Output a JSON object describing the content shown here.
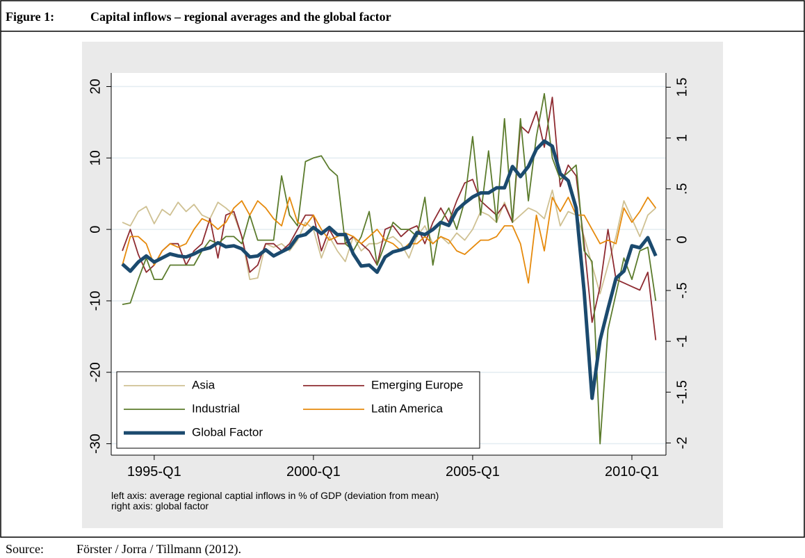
{
  "figure": {
    "label": "Figure 1:",
    "title": "Capital inflows – regional averages and the global factor"
  },
  "chart_data": {
    "type": "line",
    "x": [
      1994,
      1994.25,
      1994.5,
      1994.75,
      1995,
      1995.25,
      1995.5,
      1995.75,
      1996,
      1996.25,
      1996.5,
      1996.75,
      1997,
      1997.25,
      1997.5,
      1997.75,
      1998,
      1998.25,
      1998.5,
      1998.75,
      1999,
      1999.25,
      1999.5,
      1999.75,
      2000,
      2000.25,
      2000.5,
      2000.75,
      2001,
      2001.25,
      2001.5,
      2001.75,
      2002,
      2002.25,
      2002.5,
      2002.75,
      2003,
      2003.25,
      2003.5,
      2003.75,
      2004,
      2004.25,
      2004.5,
      2004.75,
      2005,
      2005.25,
      2005.5,
      2005.75,
      2006,
      2006.25,
      2006.5,
      2006.75,
      2007,
      2007.25,
      2007.5,
      2007.75,
      2008,
      2008.25,
      2008.5,
      2008.75,
      2009,
      2009.25,
      2009.5,
      2009.75,
      2010,
      2010.25,
      2010.5,
      2010.75
    ],
    "xlim": [
      1993.65,
      2011.07
    ],
    "xticks": [
      {
        "value": 1995,
        "label": "1995-Q1"
      },
      {
        "value": 2000,
        "label": "2000-Q1"
      },
      {
        "value": 2005,
        "label": "2005-Q1"
      },
      {
        "value": 2010,
        "label": "2010-Q1"
      }
    ],
    "ylim": [
      -31.6,
      21.9
    ],
    "yticks": [
      -30,
      -20,
      -10,
      0,
      10,
      20
    ],
    "y2lim": [
      -2.12,
      1.64
    ],
    "y2ticks": [
      {
        "value": -2,
        "label": "-2"
      },
      {
        "value": -1.5,
        "label": "-1.5"
      },
      {
        "value": -1,
        "label": "-1"
      },
      {
        "value": -0.5,
        "label": "-.5"
      },
      0,
      {
        "value": 0.5,
        "label": ".5"
      },
      1,
      {
        "value": 1.5,
        "label": "1.5"
      }
    ],
    "grid": true,
    "legend": "lower left",
    "series": [
      {
        "name": "Asia",
        "color": "#cfc193",
        "values": [
          1,
          0.5,
          2.5,
          3.2,
          0.8,
          2.8,
          2,
          3.8,
          2.5,
          3.5,
          2,
          1.5,
          3.8,
          3,
          2,
          -1,
          -7,
          -6.8,
          -2,
          -2.5,
          -2,
          -3,
          -1.5,
          1,
          0,
          -4,
          -1,
          -3,
          -4.5,
          -1,
          -3,
          -2,
          -2,
          -1.5,
          -1,
          -2,
          -4,
          -1,
          0.5,
          -2,
          -1,
          -2,
          -0.5,
          -1.5,
          0,
          2.5,
          2,
          1,
          3.8,
          1,
          2,
          3,
          2.5,
          1.5,
          5.5,
          0.5,
          2.5,
          2,
          -1,
          -5,
          -9,
          -5,
          -1,
          4,
          1.5,
          -1,
          2,
          3
        ]
      },
      {
        "name": "Emerging Europe",
        "color": "#8e2b31",
        "values": [
          -3,
          0,
          -3.5,
          -6,
          -5,
          -3,
          -2,
          -2,
          -5,
          -3,
          -2,
          1.5,
          -4,
          2,
          2.5,
          -1,
          -6,
          -5,
          -2,
          -2,
          -3,
          -2,
          0,
          2,
          2,
          -3,
          0,
          -2,
          -2,
          -1,
          -2,
          -3,
          -5,
          0,
          0.5,
          -1,
          0,
          0.5,
          -2,
          1,
          3,
          1,
          4,
          6.5,
          7,
          4,
          3,
          2,
          3.5,
          1,
          14.5,
          13.5,
          16.5,
          11.5,
          18.5,
          6,
          9,
          7.5,
          -2,
          -13,
          -8,
          0,
          -7,
          -7.5,
          -8,
          -8.5,
          -6,
          -15.5
        ]
      },
      {
        "name": "Industrial",
        "color": "#5b7b2c",
        "values": [
          -10.5,
          -10.3,
          -7,
          -4,
          -7,
          -7,
          -5,
          -5,
          -5,
          -5,
          -3,
          -1.5,
          -2,
          -1,
          -1,
          -2,
          2,
          -1.5,
          -1.5,
          -1.5,
          7.5,
          2,
          0.5,
          9.5,
          10,
          10.3,
          8.5,
          7.5,
          -2,
          -3,
          -1,
          2.5,
          -5,
          -2,
          1,
          0,
          0,
          -1,
          4.5,
          -5,
          1,
          3,
          0,
          4,
          13,
          2,
          11,
          1,
          15.5,
          1,
          15.5,
          4,
          13,
          19,
          10,
          7,
          8,
          9,
          -3,
          -4.5,
          -30,
          -14,
          -9,
          -4,
          -7,
          -3,
          -2.5,
          -10
        ]
      },
      {
        "name": "Latin America",
        "color": "#e68a0c",
        "values": [
          -5,
          -1,
          -1,
          -2,
          -5,
          -3,
          -2,
          -2.5,
          -2,
          0,
          1.5,
          1,
          0,
          1,
          3,
          4,
          2,
          4,
          3,
          1.5,
          0.5,
          4.5,
          1,
          0.5,
          2,
          0,
          -1.5,
          -1,
          -0.5,
          -1,
          -2,
          -1,
          0,
          -1.5,
          -2,
          -3,
          -2,
          -2,
          -1,
          -2,
          -1,
          -1.5,
          -3,
          -3.5,
          -2.5,
          -1.5,
          -1.5,
          -1,
          0.5,
          0.5,
          -2,
          -7.5,
          2,
          -3,
          4.5,
          2.5,
          4.5,
          2,
          2,
          0,
          -2,
          -1.5,
          -2,
          3,
          1,
          2.5,
          4.5,
          3
        ]
      },
      {
        "name": "Global Factor",
        "color": "#1b4a6e",
        "axis": "y2",
        "values": [
          -0.24,
          -0.31,
          -0.22,
          -0.16,
          -0.22,
          -0.18,
          -0.14,
          -0.16,
          -0.17,
          -0.14,
          -0.1,
          -0.08,
          -0.03,
          -0.07,
          -0.06,
          -0.09,
          -0.17,
          -0.16,
          -0.1,
          -0.16,
          -0.12,
          -0.08,
          0.03,
          0.05,
          0.12,
          0.06,
          0.12,
          0.05,
          0.05,
          -0.14,
          -0.26,
          -0.25,
          -0.32,
          -0.17,
          -0.12,
          -0.1,
          -0.07,
          0.07,
          0.05,
          0.1,
          0.17,
          0.14,
          0.29,
          0.36,
          0.42,
          0.46,
          0.46,
          0.51,
          0.51,
          0.72,
          0.62,
          0.72,
          0.89,
          0.97,
          0.92,
          0.65,
          0.58,
          0.31,
          -0.51,
          -1.56,
          -0.99,
          -0.68,
          -0.38,
          -0.31,
          -0.06,
          -0.08,
          0.02,
          -0.16
        ]
      }
    ],
    "notes": [
      "left axis: average regional captial inflows in % of GDP (deviation from mean)",
      "right axis: global factor"
    ]
  },
  "source": {
    "label": "Source:",
    "text": "Förster / Jorra / Tillmann (2012)."
  }
}
